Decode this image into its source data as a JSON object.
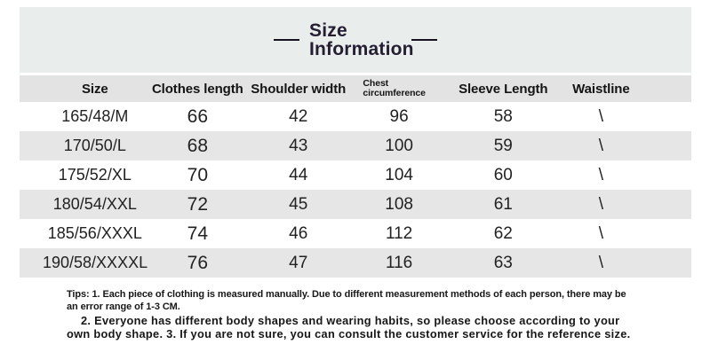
{
  "title": {
    "line1": "Size",
    "line2": "Information"
  },
  "table": {
    "headers": [
      "Size",
      "Clothes length",
      "Shoulder width",
      "Chest circumference",
      "Sleeve Length",
      "Waistline"
    ],
    "rows": [
      [
        "165/48/M",
        "66",
        "42",
        "96",
        "58",
        "\\"
      ],
      [
        "170/50/L",
        "68",
        "43",
        "100",
        "59",
        "\\"
      ],
      [
        "175/52/XL",
        "70",
        "44",
        "104",
        "60",
        "\\"
      ],
      [
        "180/54/XXL",
        "72",
        "45",
        "108",
        "61",
        "\\"
      ],
      [
        "185/56/XXXL",
        "74",
        "46",
        "112",
        "62",
        "\\"
      ],
      [
        "190/58/XXXXL",
        "76",
        "47",
        "116",
        "63",
        "\\"
      ]
    ]
  },
  "tips": {
    "p1": "Tips: 1. Each piece of clothing is measured manually. Due to different measurement methods of each person, there may be an error range of 1-3 CM.",
    "p2": "2. Everyone has different body shapes and wearing habits, so please choose according to your own body shape. 3. If you are not sure, you can consult the customer service for the reference size."
  },
  "colors": {
    "banner_bg": "#e9edec",
    "header_row_bg": "#e2e3e2",
    "zebra_row_bg": "#e5e6e5",
    "title_text": "#251e33",
    "body_text": "#1c1c1c"
  },
  "chart_data": {
    "type": "table",
    "title": "Size Information",
    "columns": [
      "Size",
      "Clothes length",
      "Shoulder width",
      "Chest circumference",
      "Sleeve Length",
      "Waistline"
    ],
    "rows": [
      {
        "size": "165/48/M",
        "clothes_length": 66,
        "shoulder_width": 42,
        "chest_circumference": 96,
        "sleeve_length": 58,
        "waistline": null
      },
      {
        "size": "170/50/L",
        "clothes_length": 68,
        "shoulder_width": 43,
        "chest_circumference": 100,
        "sleeve_length": 59,
        "waistline": null
      },
      {
        "size": "175/52/XL",
        "clothes_length": 70,
        "shoulder_width": 44,
        "chest_circumference": 104,
        "sleeve_length": 60,
        "waistline": null
      },
      {
        "size": "180/54/XXL",
        "clothes_length": 72,
        "shoulder_width": 45,
        "chest_circumference": 108,
        "sleeve_length": 61,
        "waistline": null
      },
      {
        "size": "185/56/XXXL",
        "clothes_length": 74,
        "shoulder_width": 46,
        "chest_circumference": 112,
        "sleeve_length": 62,
        "waistline": null
      },
      {
        "size": "190/58/XXXXL",
        "clothes_length": 76,
        "shoulder_width": 47,
        "chest_circumference": 116,
        "sleeve_length": 63,
        "waistline": null
      }
    ],
    "notes": "Waistline column shows \\ (not applicable) for all sizes; measurements in CM"
  }
}
